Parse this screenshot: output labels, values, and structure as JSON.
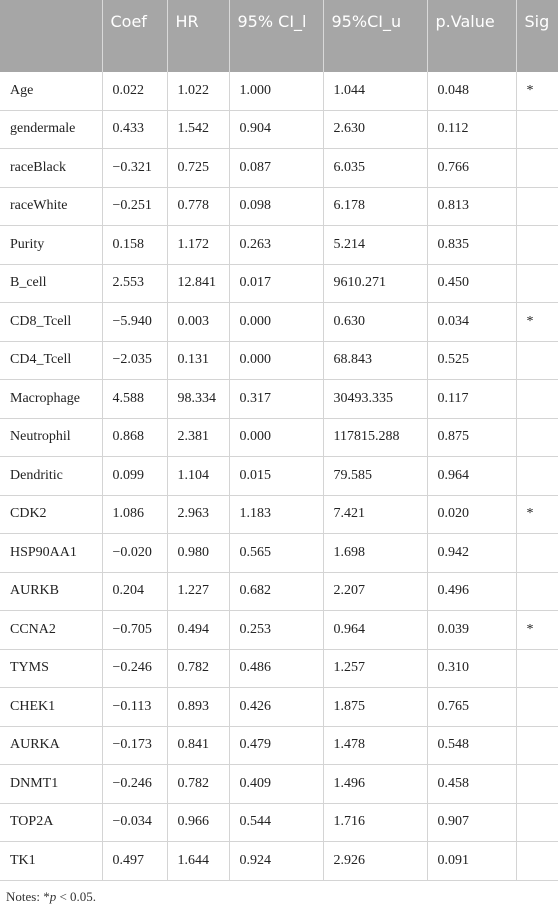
{
  "table": {
    "header": [
      "Coef",
      "HR",
      "95% CI_l",
      "95%CI_u",
      "p.Value",
      "Sig"
    ],
    "rows": [
      [
        "Age",
        "0.022",
        "1.022",
        "1.000",
        "1.044",
        "0.048",
        "*"
      ],
      [
        "gendermale",
        "0.433",
        "1.542",
        "0.904",
        "2.630",
        "0.112"
      ],
      [
        "raceBlack",
        "−0.321",
        "0.725",
        "0.087",
        "6.035",
        "0.766"
      ],
      [
        "raceWhite",
        "−0.251",
        "0.778",
        "0.098",
        "6.178",
        "0.813"
      ],
      [
        "Purity",
        "0.158",
        "1.172",
        "0.263",
        "5.214",
        "0.835"
      ],
      [
        "B_cell",
        "2.553",
        "12.841",
        "0.017",
        "9610.271",
        "0.450"
      ],
      [
        "CD8_Tcell",
        "−5.940",
        "0.003",
        "0.000",
        "0.630",
        "0.034",
        "*"
      ],
      [
        "CD4_Tcell",
        "−2.035",
        "0.131",
        "0.000",
        "68.843",
        "0.525"
      ],
      [
        "Macrophage",
        "4.588",
        "98.334",
        "0.317",
        "30493.335",
        "0.117"
      ],
      [
        "Neutrophil",
        "0.868",
        "2.381",
        "0.000",
        "117815.288",
        "0.875"
      ],
      [
        "Dendritic",
        "0.099",
        "1.104",
        "0.015",
        "79.585",
        "0.964"
      ],
      [
        "CDK2",
        "1.086",
        "2.963",
        "1.183",
        "7.421",
        "0.020",
        "*"
      ],
      [
        "HSP90AA1",
        "−0.020",
        "0.980",
        "0.565",
        "1.698",
        "0.942"
      ],
      [
        "AURKB",
        "0.204",
        "1.227",
        "0.682",
        "2.207",
        "0.496"
      ],
      [
        "CCNA2",
        "−0.705",
        "0.494",
        "0.253",
        "0.964",
        "0.039",
        "*"
      ],
      [
        "TYMS",
        "−0.246",
        "0.782",
        "0.486",
        "1.257",
        "0.310"
      ],
      [
        "CHEK1",
        "−0.113",
        "0.893",
        "0.426",
        "1.875",
        "0.765"
      ],
      [
        "AURKA",
        "−0.173",
        "0.841",
        "0.479",
        "1.478",
        "0.548"
      ],
      [
        "DNMT1",
        "−0.246",
        "0.782",
        "0.409",
        "1.496",
        "0.458"
      ],
      [
        "TOP2A",
        "−0.034",
        "0.966",
        "0.544",
        "1.716",
        "0.907"
      ],
      [
        "TK1",
        "0.497",
        "1.644",
        "0.924",
        "2.926",
        "0.091"
      ]
    ]
  },
  "notes": [
    "Notes: *",
    "p",
    " < 0.05."
  ]
}
